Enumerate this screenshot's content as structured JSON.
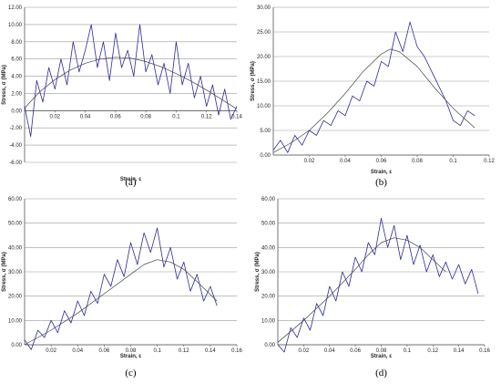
{
  "figure": {
    "panels": [
      {
        "panel_label": "(a)",
        "xlabel": "Strain, ε",
        "ylabel": "Stress, σ (MPa)"
      },
      {
        "panel_label": "(b)",
        "xlabel": "Strain, ε",
        "ylabel": "Stress, σ (MPa)"
      },
      {
        "panel_label": "(c)",
        "xlabel": "Strain, ε",
        "ylabel": "Stress, σ (MPa)"
      },
      {
        "panel_label": "(d)",
        "xlabel": "Strain, ε",
        "ylabel": "Stress, σ (MPa)"
      }
    ]
  },
  "colors": {
    "raw_series": "#2a2a9c",
    "fit_curve": "#444444",
    "grid": "#9a9a9a",
    "axis": "#555555"
  },
  "chart_data": [
    {
      "type": "line",
      "panel_label": "(a)",
      "xlabel": "Strain, ε",
      "ylabel": "Stress, σ (MPa)",
      "xlim": [
        0,
        0.14
      ],
      "ylim": [
        -6,
        12
      ],
      "xticks": [
        "0.02",
        "0.04",
        "0.06",
        "0.08",
        "0.1",
        "0.12",
        "0.14"
      ],
      "xtick_values": [
        0.02,
        0.04,
        0.06,
        0.08,
        0.1,
        0.12,
        0.14
      ],
      "yticks": [
        "-6.00",
        "-4.00",
        "-2.00",
        "0.00",
        "2.00",
        "4.00",
        "6.00",
        "8.00",
        "10.00",
        "12.00"
      ],
      "ytick_values": [
        -6,
        -4,
        -2,
        0,
        2,
        4,
        6,
        8,
        10,
        12
      ],
      "grid": "horizontal",
      "x_axis_at": 0,
      "series": [
        {
          "style": "jagged",
          "x": [
            0,
            0.004,
            0.008,
            0.012,
            0.016,
            0.02,
            0.024,
            0.028,
            0.032,
            0.036,
            0.04,
            0.044,
            0.048,
            0.052,
            0.056,
            0.06,
            0.064,
            0.068,
            0.072,
            0.076,
            0.08,
            0.084,
            0.088,
            0.092,
            0.096,
            0.1,
            0.104,
            0.108,
            0.112,
            0.116,
            0.12,
            0.124,
            0.128,
            0.132,
            0.136,
            0.14
          ],
          "y": [
            0.5,
            -3,
            3.5,
            1,
            5,
            2.5,
            6,
            3,
            8,
            4.5,
            7,
            10,
            5,
            8,
            3.5,
            9,
            5,
            7,
            4,
            10,
            4.5,
            6.5,
            3,
            5.5,
            2,
            8,
            3,
            5.5,
            1.5,
            4,
            0.5,
            3,
            -0.5,
            2.5,
            -1,
            0.5
          ]
        },
        {
          "style": "smooth",
          "x": [
            0,
            0.01,
            0.02,
            0.03,
            0.04,
            0.05,
            0.06,
            0.07,
            0.08,
            0.09,
            0.1,
            0.11,
            0.12,
            0.13,
            0.14
          ],
          "y": [
            0.3,
            2.2,
            3.6,
            4.7,
            5.5,
            6,
            6.2,
            6.1,
            5.7,
            5.1,
            4.3,
            3.4,
            2.4,
            1.3,
            0.2
          ]
        }
      ]
    },
    {
      "type": "line",
      "panel_label": "(b)",
      "xlabel": "Strain, ε",
      "ylabel": "Stress, σ (MPa)",
      "xlim": [
        0,
        0.12
      ],
      "ylim": [
        0,
        30
      ],
      "xticks": [
        "0.02",
        "0.04",
        "0.06",
        "0.08",
        "0.1",
        "0.12"
      ],
      "xtick_values": [
        0.02,
        0.04,
        0.06,
        0.08,
        0.1,
        0.12
      ],
      "yticks": [
        "0.00",
        "5.00",
        "10.00",
        "15.00",
        "20.00",
        "25.00",
        "30.00"
      ],
      "ytick_values": [
        0,
        5,
        10,
        15,
        20,
        25,
        30
      ],
      "grid": "horizontal",
      "x_axis_at": 0,
      "series": [
        {
          "style": "jagged",
          "x": [
            0,
            0.004,
            0.008,
            0.012,
            0.016,
            0.02,
            0.024,
            0.028,
            0.032,
            0.036,
            0.04,
            0.044,
            0.048,
            0.052,
            0.056,
            0.06,
            0.064,
            0.068,
            0.072,
            0.076,
            0.08,
            0.084,
            0.088,
            0.092,
            0.096,
            0.1,
            0.104,
            0.108,
            0.112
          ],
          "y": [
            1,
            3,
            0.5,
            4,
            2,
            5,
            4,
            7,
            6,
            9,
            8,
            12,
            11,
            15,
            14,
            19,
            18,
            25,
            21,
            27,
            22,
            20,
            17,
            14,
            11,
            7,
            6,
            9,
            8
          ]
        },
        {
          "style": "smooth",
          "x": [
            0,
            0.01,
            0.02,
            0.03,
            0.04,
            0.05,
            0.06,
            0.065,
            0.07,
            0.08,
            0.09,
            0.1,
            0.112
          ],
          "y": [
            0.5,
            2.5,
            5,
            8.5,
            12.5,
            17,
            20.5,
            21.5,
            21,
            18,
            13.5,
            9.5,
            5.5
          ]
        }
      ]
    },
    {
      "type": "line",
      "panel_label": "(c)",
      "xlabel": "Strain, ε",
      "ylabel": "Stress, σ (MPa)",
      "xlim": [
        0,
        0.16
      ],
      "ylim": [
        0,
        60
      ],
      "xticks": [
        "0.02",
        "0.04",
        "0.06",
        "0.08",
        "0.1",
        "0.12",
        "0.14",
        "0.16"
      ],
      "xtick_values": [
        0.02,
        0.04,
        0.06,
        0.08,
        0.1,
        0.12,
        0.14,
        0.16
      ],
      "yticks": [
        "0.00",
        "10.00",
        "20.00",
        "30.00",
        "40.00",
        "50.00",
        "60.00"
      ],
      "ytick_values": [
        0,
        10,
        20,
        30,
        40,
        50,
        60
      ],
      "grid": "horizontal",
      "x_axis_at": 0,
      "series": [
        {
          "style": "jagged",
          "x": [
            0,
            0.005,
            0.01,
            0.015,
            0.02,
            0.025,
            0.03,
            0.035,
            0.04,
            0.045,
            0.05,
            0.055,
            0.06,
            0.065,
            0.07,
            0.075,
            0.08,
            0.085,
            0.09,
            0.095,
            0.1,
            0.105,
            0.11,
            0.115,
            0.12,
            0.125,
            0.13,
            0.135,
            0.14,
            0.145
          ],
          "y": [
            2,
            -2,
            6,
            3,
            10,
            5,
            14,
            9,
            18,
            12,
            22,
            17,
            29,
            24,
            35,
            28,
            42,
            33,
            46,
            38,
            48,
            32,
            40,
            27,
            34,
            22,
            29,
            18,
            24,
            16
          ]
        },
        {
          "style": "smooth",
          "x": [
            0,
            0.02,
            0.04,
            0.06,
            0.08,
            0.09,
            0.1,
            0.11,
            0.12,
            0.13,
            0.145
          ],
          "y": [
            0,
            6,
            13,
            21,
            29,
            33,
            35,
            34,
            31,
            26,
            18
          ]
        }
      ]
    },
    {
      "type": "line",
      "panel_label": "(d)",
      "xlabel": "Strain, ε",
      "ylabel": "Stress, σ (MPa)",
      "xlim": [
        0,
        0.16
      ],
      "ylim": [
        0,
        60
      ],
      "xticks": [
        "0.02",
        "0.04",
        "0.06",
        "0.08",
        "0.1",
        "0.12",
        "0.14",
        "0.16"
      ],
      "xtick_values": [
        0.02,
        0.04,
        0.06,
        0.08,
        0.1,
        0.12,
        0.14,
        0.16
      ],
      "yticks": [
        "0.00",
        "10.00",
        "20.00",
        "30.00",
        "40.00",
        "50.00",
        "60.00"
      ],
      "ytick_values": [
        0,
        10,
        20,
        30,
        40,
        50,
        60
      ],
      "grid": "horizontal",
      "x_axis_at": 0,
      "series": [
        {
          "style": "jagged",
          "x": [
            0,
            0.005,
            0.01,
            0.015,
            0.02,
            0.025,
            0.03,
            0.035,
            0.04,
            0.045,
            0.05,
            0.055,
            0.06,
            0.065,
            0.07,
            0.075,
            0.08,
            0.085,
            0.09,
            0.095,
            0.1,
            0.105,
            0.11,
            0.115,
            0.12,
            0.125,
            0.13,
            0.135,
            0.14,
            0.145,
            0.15,
            0.155
          ],
          "y": [
            0,
            -3,
            7,
            3,
            11,
            6,
            17,
            12,
            24,
            18,
            30,
            24,
            36,
            30,
            42,
            37,
            52,
            40,
            49,
            35,
            45,
            33,
            41,
            30,
            37,
            28,
            34,
            27,
            33,
            25,
            31,
            21
          ]
        },
        {
          "style": "smooth",
          "x": [
            0,
            0.02,
            0.04,
            0.06,
            0.07,
            0.08,
            0.09,
            0.1,
            0.11,
            0.12,
            0.13
          ],
          "y": [
            1,
            10,
            20,
            31,
            37,
            42,
            44,
            43,
            40,
            35,
            30
          ]
        }
      ]
    }
  ]
}
